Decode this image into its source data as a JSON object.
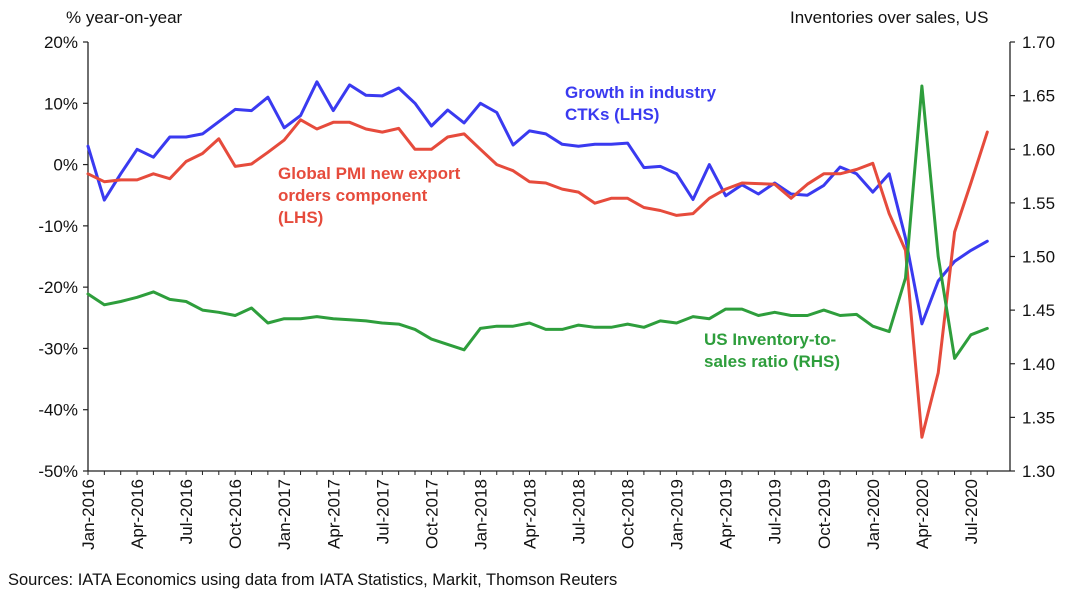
{
  "chart_data": {
    "type": "line",
    "left_axis_title": "% year-on-year",
    "right_axis_title": "Inventories over sales, US",
    "source": "Sources: IATA Economics using data from IATA Statistics, Markit, Thomson Reuters",
    "y_left": {
      "min": -50,
      "max": 20,
      "ticks": [
        20,
        10,
        0,
        -10,
        -20,
        -30,
        -40,
        -50
      ],
      "tick_labels": [
        "20%",
        "10%",
        "0%",
        "-10%",
        "-20%",
        "-30%",
        "-40%",
        "-50%"
      ]
    },
    "y_right": {
      "min": 1.3,
      "max": 1.7,
      "ticks": [
        1.7,
        1.65,
        1.6,
        1.55,
        1.5,
        1.45,
        1.4,
        1.35,
        1.3
      ],
      "tick_labels": [
        "1.70",
        "1.65",
        "1.60",
        "1.55",
        "1.50",
        "1.45",
        "1.40",
        "1.35",
        "1.30"
      ]
    },
    "x_tick_labels": [
      "Jan-2016",
      "Apr-2016",
      "Jul-2016",
      "Oct-2016",
      "Jan-2017",
      "Apr-2017",
      "Jul-2017",
      "Oct-2017",
      "Jan-2018",
      "Apr-2018",
      "Jul-2018",
      "Oct-2018",
      "Jan-2019",
      "Apr-2019",
      "Jul-2019",
      "Oct-2019",
      "Jan-2020",
      "Apr-2020",
      "Jul-2020"
    ],
    "months": [
      "Jan-2016",
      "Feb-2016",
      "Mar-2016",
      "Apr-2016",
      "May-2016",
      "Jun-2016",
      "Jul-2016",
      "Aug-2016",
      "Sep-2016",
      "Oct-2016",
      "Nov-2016",
      "Dec-2016",
      "Jan-2017",
      "Feb-2017",
      "Mar-2017",
      "Apr-2017",
      "May-2017",
      "Jun-2017",
      "Jul-2017",
      "Aug-2017",
      "Sep-2017",
      "Oct-2017",
      "Nov-2017",
      "Dec-2017",
      "Jan-2018",
      "Feb-2018",
      "Mar-2018",
      "Apr-2018",
      "May-2018",
      "Jun-2018",
      "Jul-2018",
      "Aug-2018",
      "Sep-2018",
      "Oct-2018",
      "Nov-2018",
      "Dec-2018",
      "Jan-2019",
      "Feb-2019",
      "Mar-2019",
      "Apr-2019",
      "May-2019",
      "Jun-2019",
      "Jul-2019",
      "Aug-2019",
      "Sep-2019",
      "Oct-2019",
      "Nov-2019",
      "Dec-2019",
      "Jan-2020",
      "Feb-2020",
      "Mar-2020",
      "Apr-2020",
      "May-2020",
      "Jun-2020",
      "Jul-2020",
      "Aug-2020"
    ],
    "series": [
      {
        "name": "Growth in industry CTKs (LHS)",
        "label": "Growth in industry\nCTKs (LHS)",
        "axis": "left",
        "color": "#3a3af0",
        "values": [
          3,
          -5.8,
          -1.5,
          2.5,
          1.2,
          4.5,
          4.5,
          5.0,
          7.0,
          9.0,
          8.8,
          11.0,
          6.0,
          8.0,
          13.5,
          8.8,
          13.0,
          11.3,
          11.2,
          12.5,
          10.0,
          6.3,
          8.9,
          6.8,
          10.0,
          8.5,
          3.2,
          5.5,
          5.0,
          3.3,
          3.0,
          3.3,
          3.3,
          3.5,
          -0.5,
          -0.3,
          -1.5,
          -5.7,
          0,
          -5.1,
          -3.3,
          -4.8,
          -3.0,
          -4.8,
          -5.0,
          -3.4,
          -0.4,
          -1.5,
          -4.5,
          -1.5,
          -12.0,
          -26.0,
          -19.0,
          -15.8,
          -14.0,
          -12.5
        ]
      },
      {
        "name": "Global PMI new export orders component (LHS)",
        "label": "Global PMI new export\norders component\n(LHS)",
        "axis": "left",
        "color": "#e64b3c",
        "values": [
          -1.5,
          -2.8,
          -2.5,
          -2.5,
          -1.5,
          -2.3,
          0.5,
          1.8,
          4.2,
          -0.3,
          0.1,
          2.0,
          4.0,
          7.3,
          5.8,
          6.9,
          6.9,
          5.8,
          5.3,
          5.9,
          2.5,
          2.5,
          4.5,
          5.0,
          2.5,
          0,
          -1.0,
          -2.8,
          -3.0,
          -4.0,
          -4.5,
          -6.3,
          -5.5,
          -5.5,
          -7.0,
          -7.5,
          -8.3,
          -8.0,
          -5.5,
          -4.0,
          -3.0,
          -3.1,
          -3.2,
          -5.5,
          -3.2,
          -1.5,
          -1.5,
          -0.8,
          0.2,
          -8.0,
          -14.0,
          -44.5,
          -34.0,
          -11.0,
          -3.0,
          5.3
        ]
      },
      {
        "name": "US Inventory-to-sales ratio (RHS)",
        "label": "US Inventory-to-\nsales ratio (RHS)",
        "axis": "right",
        "color": "#2e9e3c",
        "values": [
          1.465,
          1.455,
          1.458,
          1.462,
          1.467,
          1.46,
          1.458,
          1.45,
          1.448,
          1.445,
          1.452,
          1.438,
          1.442,
          1.442,
          1.444,
          1.442,
          1.441,
          1.44,
          1.438,
          1.437,
          1.432,
          1.423,
          1.418,
          1.413,
          1.433,
          1.435,
          1.435,
          1.438,
          1.432,
          1.432,
          1.436,
          1.434,
          1.434,
          1.437,
          1.434,
          1.44,
          1.438,
          1.444,
          1.442,
          1.451,
          1.451,
          1.445,
          1.448,
          1.445,
          1.445,
          1.45,
          1.445,
          1.446,
          1.435,
          1.43,
          1.48,
          1.659,
          1.5,
          1.405,
          1.427,
          1.433
        ]
      }
    ]
  }
}
